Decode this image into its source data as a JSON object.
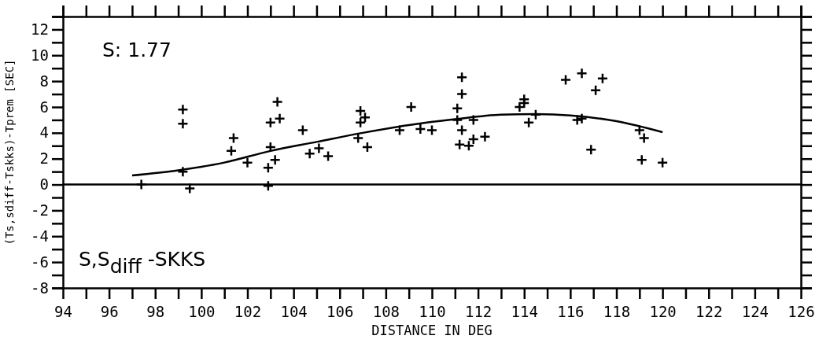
{
  "chart_data": {
    "type": "scatter",
    "xlabel": "DISTANCE IN DEG",
    "ylabel": "(Ts,sdiff-Tskks)-Tprem [SEC]",
    "xlim": [
      94,
      126
    ],
    "xticks": [
      94,
      {
        "value": 95,
        "label": null
      },
      96,
      {
        "value": 97,
        "label": null
      },
      98,
      {
        "value": 99,
        "label": null
      },
      100,
      {
        "value": 101,
        "label": null
      },
      102,
      {
        "value": 103,
        "label": null
      },
      104,
      {
        "value": 105,
        "label": null
      },
      106,
      {
        "value": 107,
        "label": null
      },
      108,
      {
        "value": 109,
        "label": null
      },
      110,
      {
        "value": 111,
        "label": null
      },
      112,
      {
        "value": 113,
        "label": null
      },
      114,
      {
        "value": 115,
        "label": null
      },
      116,
      {
        "value": 117,
        "label": null
      },
      118,
      {
        "value": 119,
        "label": null
      },
      120,
      {
        "value": 121,
        "label": null
      },
      122,
      {
        "value": 123,
        "label": null
      },
      124,
      {
        "value": 125,
        "label": null
      },
      126
    ],
    "ylim": [
      -8,
      13
    ],
    "yticks": [
      -8,
      {
        "value": -7,
        "label": null
      },
      -6,
      {
        "value": -5,
        "label": null
      },
      -4,
      {
        "value": -3,
        "label": null
      },
      -2,
      {
        "value": -1,
        "label": null
      },
      0,
      {
        "value": 1,
        "label": null
      },
      2,
      {
        "value": 3,
        "label": null
      },
      4,
      {
        "value": 5,
        "label": null
      },
      6,
      {
        "value": 7,
        "label": null
      },
      8,
      {
        "value": 9,
        "label": null
      },
      10,
      {
        "value": 11,
        "label": null
      },
      12,
      {
        "value": 13,
        "label": null
      }
    ],
    "grid": false,
    "marker": "cross",
    "ref_lines": [
      {
        "axis": "y",
        "value": 0,
        "color": "#000000"
      }
    ],
    "annotations": [
      "S: 1.77",
      "S,S$_{diff}$ -SKKS"
    ],
    "series": [
      {
        "color": "#000000",
        "x": [
          97.4,
          99.2,
          99.2,
          99.2,
          99.5,
          101.3,
          101.4,
          102.0,
          102.9,
          102.9,
          103.0,
          103.0,
          103.2,
          103.3,
          103.4,
          104.4,
          104.7,
          105.1,
          105.5,
          106.9,
          106.8,
          106.9,
          107.1,
          107.2,
          108.6,
          109.1,
          109.5,
          110.0,
          111.1,
          111.1,
          111.3,
          111.3,
          111.2,
          111.3,
          111.6,
          111.8,
          111.8,
          112.3,
          113.8,
          114.0,
          114.0,
          114.2,
          114.5,
          115.8,
          116.3,
          116.5,
          116.5,
          116.9,
          117.1,
          117.4,
          119.0,
          119.2,
          119.1,
          120.0
        ],
        "values": [
          0.0,
          5.8,
          4.7,
          1.0,
          -0.3,
          2.6,
          3.6,
          1.7,
          1.3,
          -0.1,
          2.9,
          4.8,
          1.9,
          6.4,
          5.1,
          4.2,
          2.4,
          2.8,
          2.2,
          4.8,
          3.6,
          5.7,
          5.2,
          2.9,
          4.2,
          6.0,
          4.3,
          4.2,
          5.0,
          5.9,
          7.0,
          8.3,
          3.1,
          4.2,
          3.0,
          3.5,
          5.0,
          3.7,
          6.0,
          6.6,
          6.3,
          4.8,
          5.4,
          8.1,
          5.0,
          5.1,
          8.6,
          2.7,
          7.3,
          8.2,
          4.2,
          3.6,
          1.9,
          1.7
        ]
      },
      {
        "type": "line",
        "color": "#000000",
        "marker": "none",
        "x": [
          97,
          99,
          101,
          103,
          105,
          107,
          109,
          111,
          113,
          114.5,
          116,
          118,
          120
        ],
        "values": [
          0.7,
          1.1,
          1.7,
          2.6,
          3.3,
          4.0,
          4.6,
          5.05,
          5.4,
          5.45,
          5.35,
          4.9,
          4.05
        ]
      }
    ]
  }
}
